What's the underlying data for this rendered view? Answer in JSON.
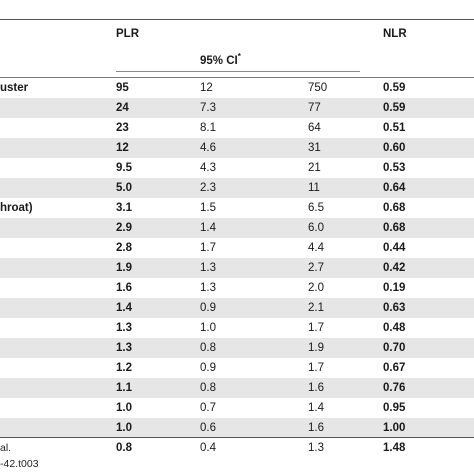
{
  "header": {
    "plr": "PLR",
    "nlr": "NLR",
    "ci": "95% CI",
    "ci_sup": "*"
  },
  "rows": [
    {
      "label": "uster",
      "plr": "95",
      "lo": "12",
      "hi": "750",
      "nlr": "0.59"
    },
    {
      "label": "",
      "plr": "24",
      "lo": "7.3",
      "hi": "77",
      "nlr": "0.59"
    },
    {
      "label": "",
      "plr": "23",
      "lo": "8.1",
      "hi": "64",
      "nlr": "0.51"
    },
    {
      "label": "",
      "plr": "12",
      "lo": "4.6",
      "hi": "31",
      "nlr": "0.60"
    },
    {
      "label": "",
      "plr": "9.5",
      "lo": "4.3",
      "hi": "21",
      "nlr": "0.53"
    },
    {
      "label": "",
      "plr": "5.0",
      "lo": "2.3",
      "hi": "11",
      "nlr": "0.64"
    },
    {
      "label": "hroat)",
      "plr": "3.1",
      "lo": "1.5",
      "hi": "6.5",
      "nlr": "0.68"
    },
    {
      "label": "",
      "plr": "2.9",
      "lo": "1.4",
      "hi": "6.0",
      "nlr": "0.68"
    },
    {
      "label": "",
      "plr": "2.8",
      "lo": "1.7",
      "hi": "4.4",
      "nlr": "0.44"
    },
    {
      "label": "",
      "plr": "1.9",
      "lo": "1.3",
      "hi": "2.7",
      "nlr": "0.42"
    },
    {
      "label": "",
      "plr": "1.6",
      "lo": "1.3",
      "hi": "2.0",
      "nlr": "0.19"
    },
    {
      "label": "",
      "plr": "1.4",
      "lo": "0.9",
      "hi": "2.1",
      "nlr": "0.63"
    },
    {
      "label": "",
      "plr": "1.3",
      "lo": "1.0",
      "hi": "1.7",
      "nlr": "0.48"
    },
    {
      "label": "",
      "plr": "1.3",
      "lo": "0.8",
      "hi": "1.9",
      "nlr": "0.70"
    },
    {
      "label": "",
      "plr": "1.2",
      "lo": "0.9",
      "hi": "1.7",
      "nlr": "0.67"
    },
    {
      "label": "",
      "plr": "1.1",
      "lo": "0.8",
      "hi": "1.6",
      "nlr": "0.76"
    },
    {
      "label": "",
      "plr": "1.0",
      "lo": "0.7",
      "hi": "1.4",
      "nlr": "0.95"
    },
    {
      "label": "",
      "plr": "1.0",
      "lo": "0.6",
      "hi": "1.6",
      "nlr": "1.00"
    },
    {
      "label": "",
      "plr": "0.8",
      "lo": "0.4",
      "hi": "1.3",
      "nlr": "1.48"
    }
  ],
  "footnotes": {
    "line1": "al.",
    "line2": "-42.t003"
  }
}
